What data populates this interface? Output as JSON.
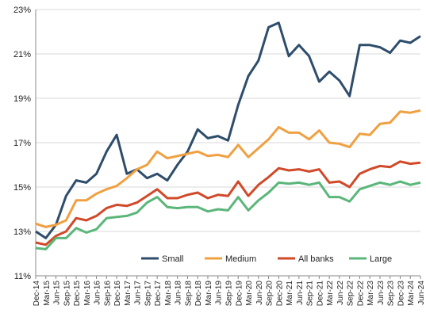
{
  "chart_data": {
    "type": "line",
    "categories": [
      "Dec-14",
      "Mar-15",
      "Jun-15",
      "Sep-15",
      "Dec-15",
      "Mar-16",
      "Jun-16",
      "Sep-16",
      "Dec-16",
      "Mar-17",
      "Jun-17",
      "Sep-17",
      "Dec-17",
      "Mar-18",
      "Jun-18",
      "Sep-18",
      "Dec-18",
      "Mar-19",
      "Jun-19",
      "Sep-19",
      "Dec-19",
      "Mar-20",
      "Jun-20",
      "Sep-20",
      "Dec-20",
      "Mar-21",
      "Jun-21",
      "Sep-21",
      "Dec-21",
      "Mar-22",
      "Jun-22",
      "Sep-22",
      "Dec-22",
      "Mar-23",
      "Jun-23",
      "Sep-23",
      "Dec-23",
      "Mar-24",
      "Jun-24"
    ],
    "series": [
      {
        "name": "Small",
        "color": "#2e4d6b",
        "values": [
          13.0,
          12.7,
          13.3,
          14.6,
          15.3,
          15.2,
          15.6,
          16.6,
          17.35,
          15.6,
          15.8,
          15.4,
          15.6,
          15.3,
          16.0,
          16.6,
          17.6,
          17.2,
          17.3,
          17.1,
          18.7,
          20.0,
          20.7,
          22.2,
          22.4,
          20.9,
          21.4,
          20.9,
          19.75,
          20.2,
          19.8,
          19.1,
          21.4,
          21.4,
          21.3,
          21.05,
          21.6,
          21.5,
          21.8
        ]
      },
      {
        "name": "Medium",
        "color": "#f0a040",
        "values": [
          13.35,
          13.2,
          13.3,
          13.5,
          14.4,
          14.4,
          14.7,
          14.9,
          15.05,
          15.4,
          15.8,
          16.0,
          16.6,
          16.3,
          16.4,
          16.5,
          16.6,
          16.4,
          16.45,
          16.35,
          16.9,
          16.35,
          16.75,
          17.15,
          17.7,
          17.45,
          17.45,
          17.15,
          17.55,
          17.0,
          16.95,
          16.8,
          17.4,
          17.35,
          17.85,
          17.9,
          18.4,
          18.35,
          18.45
        ]
      },
      {
        "name": "All banks",
        "color": "#d04a2a",
        "values": [
          12.5,
          12.4,
          12.8,
          13.0,
          13.6,
          13.5,
          13.7,
          14.05,
          14.2,
          14.15,
          14.3,
          14.6,
          14.9,
          14.5,
          14.5,
          14.65,
          14.75,
          14.5,
          14.65,
          14.6,
          15.25,
          14.6,
          15.1,
          15.45,
          15.85,
          15.75,
          15.8,
          15.7,
          15.8,
          15.2,
          15.25,
          15.0,
          15.6,
          15.8,
          15.95,
          15.9,
          16.15,
          16.05,
          16.1
        ]
      },
      {
        "name": "Large",
        "color": "#5bb67a",
        "values": [
          12.25,
          12.2,
          12.7,
          12.7,
          13.15,
          12.95,
          13.1,
          13.6,
          13.65,
          13.7,
          13.85,
          14.3,
          14.55,
          14.1,
          14.05,
          14.1,
          14.1,
          13.9,
          14.0,
          13.95,
          14.55,
          13.95,
          14.4,
          14.75,
          15.2,
          15.15,
          15.2,
          15.1,
          15.2,
          14.55,
          14.55,
          14.35,
          14.9,
          15.05,
          15.2,
          15.1,
          15.25,
          15.1,
          15.2
        ]
      }
    ],
    "ylim": [
      11,
      23
    ],
    "yticks": [
      {
        "value": 11,
        "label": "11%"
      },
      {
        "value": 13,
        "label": "13%"
      },
      {
        "value": 15,
        "label": "15%"
      },
      {
        "value": 17,
        "label": "17%"
      },
      {
        "value": 19,
        "label": "19%"
      },
      {
        "value": 21,
        "label": "21%"
      },
      {
        "value": 23,
        "label": "23%"
      }
    ],
    "grid": true,
    "legend": "bottom"
  }
}
